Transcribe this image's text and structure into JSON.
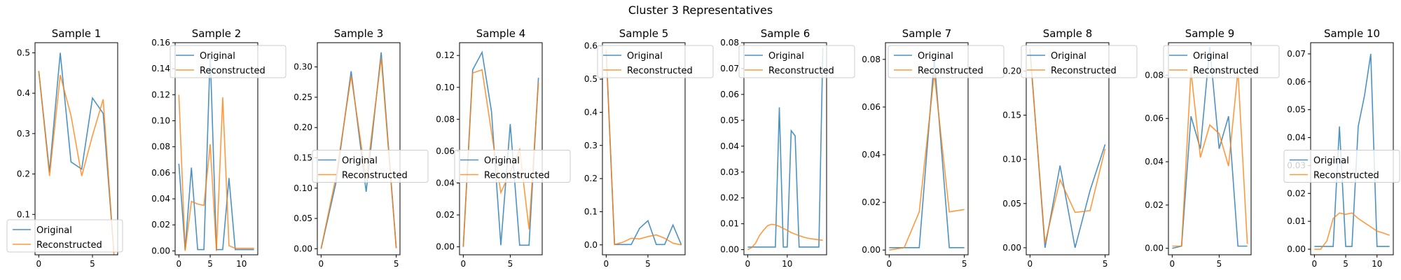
{
  "figure": {
    "suptitle": "Cluster 3 Representatives"
  },
  "colors": {
    "original": "#1f77b4",
    "reconstructed": "#ff7f0e",
    "axis": "#000000",
    "background": "#ffffff",
    "legend_edge": "#cccccc"
  },
  "chart_data": [
    {
      "type": "line",
      "title": "Sample 1",
      "xlim": [
        -0.35,
        7.35
      ],
      "ylim": [
        0.0,
        0.525
      ],
      "xticks": [
        0,
        5
      ],
      "yticks": [
        0.1,
        0.2,
        0.3,
        0.4,
        0.5
      ],
      "legend": "lower-left",
      "series": [
        {
          "name": "Original",
          "x": [
            0,
            1,
            2,
            3,
            4,
            5,
            6,
            7
          ],
          "y": [
            0.455,
            0.205,
            0.5,
            0.23,
            0.212,
            0.388,
            0.35,
            0.005
          ]
        },
        {
          "name": "Reconstructed",
          "x": [
            0,
            1,
            2,
            3,
            4,
            5,
            6,
            7
          ],
          "y": [
            0.455,
            0.195,
            0.445,
            0.345,
            0.195,
            0.295,
            0.385,
            0.0
          ]
        }
      ]
    },
    {
      "type": "line",
      "title": "Sample 2",
      "xlim": [
        -0.6,
        12.6
      ],
      "ylim": [
        -0.003,
        0.16
      ],
      "xticks": [
        0,
        5,
        10
      ],
      "yticks": [
        0.0,
        0.02,
        0.04,
        0.06,
        0.08,
        0.1,
        0.12,
        0.14,
        0.16
      ],
      "legend": "top-right",
      "series": [
        {
          "name": "Original",
          "x": [
            0,
            1,
            2,
            3,
            4,
            5,
            6,
            7,
            8,
            9,
            10,
            11,
            12
          ],
          "y": [
            0.067,
            0.001,
            0.064,
            0.001,
            0.001,
            0.152,
            0.001,
            0.001,
            0.056,
            0.001,
            0.001,
            0.001,
            0.001
          ]
        },
        {
          "name": "Reconstructed",
          "x": [
            0,
            1,
            2,
            3,
            4,
            5,
            6,
            7,
            8,
            9,
            10,
            11,
            12
          ],
          "y": [
            0.12,
            0.0,
            0.038,
            0.036,
            0.035,
            0.082,
            0.0,
            0.118,
            0.004,
            0.002,
            0.002,
            0.002,
            0.002
          ]
        }
      ]
    },
    {
      "type": "line",
      "title": "Sample 3",
      "xlim": [
        -0.25,
        5.25
      ],
      "ylim": [
        -0.01,
        0.34
      ],
      "xticks": [
        0,
        5
      ],
      "yticks": [
        0.0,
        0.05,
        0.1,
        0.15,
        0.2,
        0.25,
        0.3
      ],
      "legend": "center-right",
      "series": [
        {
          "name": "Original",
          "x": [
            0,
            1,
            2,
            3,
            4,
            5
          ],
          "y": [
            0.0,
            0.11,
            0.293,
            0.094,
            0.324,
            0.001
          ]
        },
        {
          "name": "Reconstructed",
          "x": [
            0,
            1,
            2,
            3,
            4,
            5
          ],
          "y": [
            0.0,
            0.12,
            0.285,
            0.115,
            0.315,
            0.001
          ]
        }
      ]
    },
    {
      "type": "line",
      "title": "Sample 4",
      "xlim": [
        -0.4,
        8.4
      ],
      "ylim": [
        -0.005,
        0.128
      ],
      "xticks": [
        0,
        5
      ],
      "yticks": [
        0.0,
        0.02,
        0.04,
        0.06,
        0.08,
        0.1,
        0.12
      ],
      "legend": "center-right",
      "series": [
        {
          "name": "Original",
          "x": [
            0,
            1,
            2,
            3,
            4,
            5,
            6,
            7,
            8
          ],
          "y": [
            0.0,
            0.111,
            0.122,
            0.085,
            0.001,
            0.077,
            0.001,
            0.001,
            0.106
          ]
        },
        {
          "name": "Reconstructed",
          "x": [
            0,
            1,
            2,
            3,
            4,
            5,
            6,
            7,
            8
          ],
          "y": [
            0.0,
            0.109,
            0.111,
            0.072,
            0.034,
            0.047,
            0.061,
            0.011,
            0.103
          ]
        }
      ]
    },
    {
      "type": "line",
      "title": "Sample 5",
      "xlim": [
        -0.45,
        9.45
      ],
      "ylim": [
        -0.03,
        0.61
      ],
      "xticks": [
        0,
        5
      ],
      "yticks": [
        0.0,
        0.1,
        0.2,
        0.3,
        0.4,
        0.5,
        0.6
      ],
      "legend": "top-right",
      "series": [
        {
          "name": "Original",
          "x": [
            0,
            1,
            2,
            3,
            4,
            5,
            6,
            7,
            8,
            9
          ],
          "y": [
            0.585,
            0.001,
            0.001,
            0.001,
            0.05,
            0.073,
            0.001,
            0.001,
            0.06,
            0.0
          ]
        },
        {
          "name": "Reconstructed",
          "x": [
            0,
            1,
            2,
            3,
            4,
            5,
            6,
            7,
            8,
            9
          ],
          "y": [
            0.59,
            0.001,
            0.008,
            0.02,
            0.018,
            0.025,
            0.03,
            0.02,
            0.005,
            0.0
          ]
        }
      ]
    },
    {
      "type": "line",
      "title": "Sample 6",
      "xlim": [
        -0.95,
        19.95
      ],
      "ylim": [
        -0.002,
        0.08
      ],
      "xticks": [
        0,
        10
      ],
      "yticks": [
        0.0,
        0.01,
        0.02,
        0.03,
        0.04,
        0.05,
        0.06,
        0.07,
        0.08
      ],
      "legend": "top-right",
      "series": [
        {
          "name": "Original",
          "x": [
            0,
            1,
            2,
            3,
            4,
            5,
            6,
            7,
            8,
            9,
            10,
            11,
            12,
            13,
            14,
            15,
            16,
            17,
            18,
            19
          ],
          "y": [
            0.001,
            0.001,
            0.001,
            0.001,
            0.001,
            0.001,
            0.001,
            0.001,
            0.055,
            0.001,
            0.001,
            0.046,
            0.044,
            0.001,
            0.001,
            0.001,
            0.001,
            0.001,
            0.001,
            0.078
          ]
        },
        {
          "name": "Reconstructed",
          "x": [
            0,
            1,
            2,
            3,
            4,
            5,
            6,
            7,
            8,
            9,
            10,
            11,
            12,
            13,
            14,
            15,
            16,
            17,
            18,
            19
          ],
          "y": [
            0.0,
            0.0008,
            0.0025,
            0.0055,
            0.0075,
            0.0092,
            0.0098,
            0.0096,
            0.009,
            0.0082,
            0.0075,
            0.0066,
            0.006,
            0.0054,
            0.0049,
            0.0045,
            0.0042,
            0.004,
            0.0038,
            0.0036
          ]
        }
      ]
    },
    {
      "type": "line",
      "title": "Sample 7",
      "xlim": [
        -0.25,
        5.25
      ],
      "ylim": [
        -0.002,
        0.087
      ],
      "xticks": [
        0,
        5
      ],
      "yticks": [
        0.0,
        0.02,
        0.04,
        0.06,
        0.08
      ],
      "legend": "top-left",
      "series": [
        {
          "name": "Original",
          "x": [
            0,
            1,
            2,
            3,
            4,
            5
          ],
          "y": [
            0.001,
            0.001,
            0.001,
            0.08,
            0.001,
            0.001
          ]
        },
        {
          "name": "Reconstructed",
          "x": [
            0,
            1,
            2,
            3,
            4,
            5
          ],
          "y": [
            0.0,
            0.001,
            0.016,
            0.074,
            0.016,
            0.017
          ]
        }
      ]
    },
    {
      "type": "line",
      "title": "Sample 8",
      "xlim": [
        -0.25,
        5.25
      ],
      "ylim": [
        -0.008,
        0.232
      ],
      "xticks": [
        0,
        5
      ],
      "yticks": [
        0.0,
        0.05,
        0.1,
        0.15,
        0.2
      ],
      "legend": "top-right",
      "series": [
        {
          "name": "Original",
          "x": [
            0,
            1,
            2,
            3,
            4,
            5
          ],
          "y": [
            0.225,
            0.0,
            0.093,
            0.0,
            0.065,
            0.117
          ]
        },
        {
          "name": "Reconstructed",
          "x": [
            0,
            1,
            2,
            3,
            4,
            5
          ],
          "y": [
            0.222,
            0.005,
            0.077,
            0.04,
            0.042,
            0.112
          ]
        }
      ]
    },
    {
      "type": "line",
      "title": "Sample 9",
      "xlim": [
        -0.4,
        8.4
      ],
      "ylim": [
        -0.003,
        0.095
      ],
      "xticks": [
        0,
        5
      ],
      "yticks": [
        0.0,
        0.02,
        0.04,
        0.06,
        0.08
      ],
      "legend": "top-right",
      "series": [
        {
          "name": "Original",
          "x": [
            0,
            1,
            2,
            3,
            4,
            5,
            6,
            7,
            8
          ],
          "y": [
            0.0,
            0.001,
            0.061,
            0.046,
            0.093,
            0.046,
            0.061,
            0.001,
            0.001
          ]
        },
        {
          "name": "Reconstructed",
          "x": [
            0,
            1,
            2,
            3,
            4,
            5,
            6,
            7,
            8
          ],
          "y": [
            0.001,
            0.001,
            0.082,
            0.042,
            0.057,
            0.053,
            0.038,
            0.082,
            0.002
          ]
        }
      ]
    },
    {
      "type": "line",
      "title": "Sample 10",
      "xlim": [
        -0.6,
        12.6
      ],
      "ylim": [
        -0.002,
        0.074
      ],
      "xticks": [
        0,
        5,
        10
      ],
      "yticks": [
        0.0,
        0.01,
        0.02,
        0.03,
        0.04,
        0.05,
        0.06,
        0.07
      ],
      "legend": "center-right",
      "series": [
        {
          "name": "Original",
          "x": [
            0,
            1,
            2,
            3,
            4,
            5,
            6,
            7,
            8,
            9,
            10,
            11,
            12
          ],
          "y": [
            0.001,
            0.001,
            0.001,
            0.001,
            0.044,
            0.001,
            0.001,
            0.044,
            0.055,
            0.07,
            0.001,
            0.001,
            0.001
          ]
        },
        {
          "name": "Reconstructed",
          "x": [
            0,
            1,
            2,
            3,
            4,
            5,
            6,
            7,
            8,
            9,
            10,
            11,
            12
          ],
          "y": [
            0.0,
            0.0,
            0.003,
            0.011,
            0.013,
            0.0125,
            0.013,
            0.011,
            0.0095,
            0.008,
            0.0065,
            0.0058,
            0.005
          ]
        }
      ]
    }
  ]
}
